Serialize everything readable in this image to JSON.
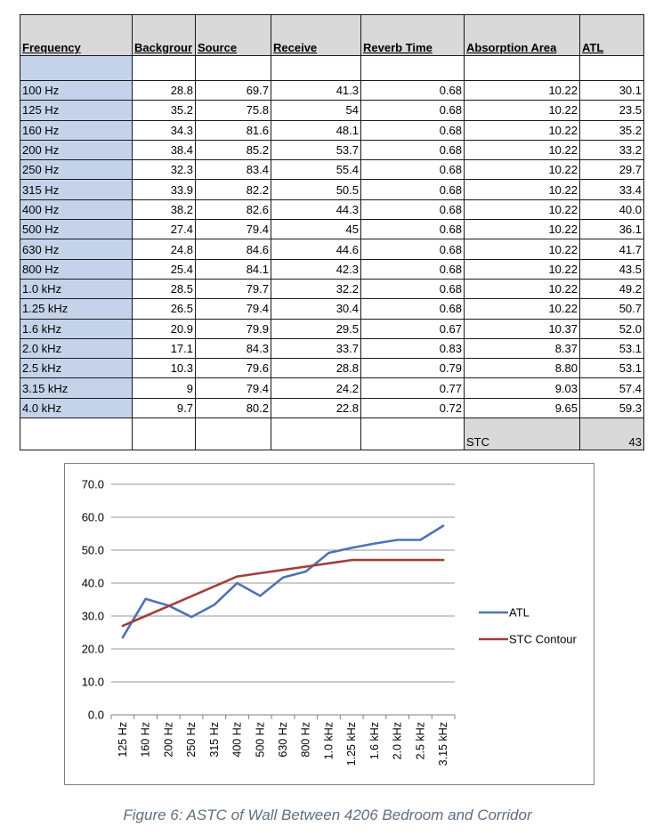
{
  "table": {
    "headers": [
      "Frequency",
      "Backgrour",
      "Source",
      "Receive",
      "Reverb Time",
      "Absorption Area",
      "ATL"
    ],
    "rows": [
      [
        "100 Hz",
        "28.8",
        "69.7",
        "41.3",
        "0.68",
        "10.22",
        "30.1"
      ],
      [
        "125 Hz",
        "35.2",
        "75.8",
        "54",
        "0.68",
        "10.22",
        "23.5"
      ],
      [
        "160 Hz",
        "34.3",
        "81.6",
        "48.1",
        "0.68",
        "10.22",
        "35.2"
      ],
      [
        "200 Hz",
        "38.4",
        "85.2",
        "53.7",
        "0.68",
        "10.22",
        "33.2"
      ],
      [
        "250 Hz",
        "32.3",
        "83.4",
        "55.4",
        "0.68",
        "10.22",
        "29.7"
      ],
      [
        "315 Hz",
        "33.9",
        "82.2",
        "50.5",
        "0.68",
        "10.22",
        "33.4"
      ],
      [
        "400 Hz",
        "38.2",
        "82.6",
        "44.3",
        "0.68",
        "10.22",
        "40.0"
      ],
      [
        "500 Hz",
        "27.4",
        "79.4",
        "45",
        "0.68",
        "10.22",
        "36.1"
      ],
      [
        "630 Hz",
        "24.8",
        "84.6",
        "44.6",
        "0.68",
        "10.22",
        "41.7"
      ],
      [
        "800 Hz",
        "25.4",
        "84.1",
        "42.3",
        "0.68",
        "10.22",
        "43.5"
      ],
      [
        "1.0 kHz",
        "28.5",
        "79.7",
        "32.2",
        "0.68",
        "10.22",
        "49.2"
      ],
      [
        "1.25 kHz",
        "26.5",
        "79.4",
        "30.4",
        "0.68",
        "10.22",
        "50.7"
      ],
      [
        "1.6 kHz",
        "20.9",
        "79.9",
        "29.5",
        "0.67",
        "10.37",
        "52.0"
      ],
      [
        "2.0 kHz",
        "17.1",
        "84.3",
        "33.7",
        "0.83",
        "8.37",
        "53.1"
      ],
      [
        "2.5 kHz",
        "10.3",
        "79.6",
        "28.8",
        "0.79",
        "8.80",
        "53.1"
      ],
      [
        "3.15 kHz",
        "9",
        "79.4",
        "24.2",
        "0.77",
        "9.03",
        "57.4"
      ],
      [
        "4.0 kHz",
        "9.7",
        "80.2",
        "22.8",
        "0.72",
        "9.65",
        "59.3"
      ]
    ],
    "footer": {
      "label": "STC",
      "value": "43"
    }
  },
  "colors": {
    "atl": "#4f72b4",
    "stc": "#a0403c",
    "grid": "#9a9a9a",
    "freq_fill": "#c5d3ea",
    "header_fill": "#d9d9d9"
  },
  "chart_data": {
    "type": "line",
    "categories": [
      "125 Hz",
      "160 Hz",
      "200 Hz",
      "250 Hz",
      "315 Hz",
      "400 Hz",
      "500 Hz",
      "630 Hz",
      "800 Hz",
      "1.0 kHz",
      "1.25 kHz",
      "1.6 kHz",
      "2.0 kHz",
      "2.5 kHz",
      "3.15 kHz"
    ],
    "series": [
      {
        "name": "ATL",
        "values": [
          23.5,
          35.2,
          33.2,
          29.7,
          33.4,
          40.0,
          36.1,
          41.7,
          43.5,
          49.2,
          50.7,
          52.0,
          53.1,
          53.1,
          57.4
        ]
      },
      {
        "name": "STC Contour",
        "values": [
          27,
          30,
          33,
          36,
          39,
          42,
          43,
          44,
          45,
          46,
          47,
          47,
          47,
          47,
          47
        ]
      }
    ],
    "yticks": [
      "0.0",
      "10.0",
      "20.0",
      "30.0",
      "40.0",
      "50.0",
      "60.0",
      "70.0"
    ],
    "ylim": [
      0,
      70
    ],
    "grid": true,
    "legend": "right",
    "caption": "Figure 6: ASTC of Wall Between 4206 Bedroom and Corridor"
  }
}
